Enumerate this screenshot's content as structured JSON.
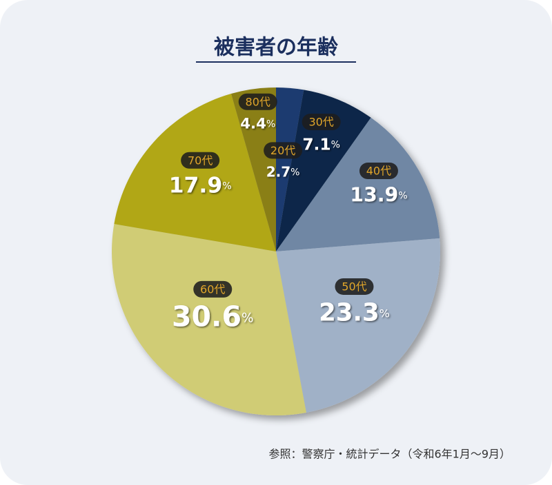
{
  "chart_data": {
    "type": "pie",
    "title": "被害者の年齢",
    "categories": [
      "20代",
      "30代",
      "40代",
      "50代",
      "60代",
      "70代",
      "80代"
    ],
    "values": [
      2.7,
      7.1,
      13.9,
      23.3,
      30.6,
      17.9,
      4.4
    ],
    "value_labels": [
      "2.7%",
      "7.1%",
      "13.9%",
      "23.3%",
      "30.6%",
      "17.9%",
      "4.4%"
    ],
    "colors": [
      "#1b3b6f",
      "#0e2749",
      "#6f87a4",
      "#a0b1c7",
      "#d0cc74",
      "#b1a717",
      "#8a7f15"
    ],
    "source": "参照：警察庁・統計データ（令和6年1月～9月）"
  }
}
